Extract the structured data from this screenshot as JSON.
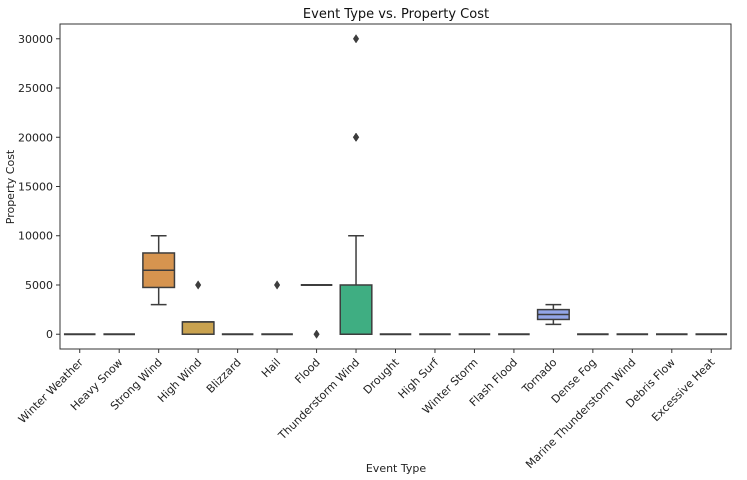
{
  "chart_data": {
    "type": "box",
    "title": "Event Type vs. Property Cost",
    "xlabel": "Event Type",
    "ylabel": "Property Cost",
    "ylim": [
      -1500,
      31500
    ],
    "yticks": [
      0,
      5000,
      10000,
      15000,
      20000,
      25000,
      30000
    ],
    "grid": false,
    "categories": [
      "Winter Weather",
      "Heavy Snow",
      "Strong Wind",
      "High Wind",
      "Blizzard",
      "Hail",
      "Flood",
      "Thunderstorm Wind",
      "Drought",
      "High Surf",
      "Winter Storm",
      "Flash Flood",
      "Tornado",
      "Dense Fog",
      "Marine Thunderstorm Wind",
      "Debris Flow",
      "Excessive Heat"
    ],
    "boxes": [
      {
        "category": "Winter Weather",
        "whisker_low": 0,
        "q1": 0,
        "median": 0,
        "q3": 0,
        "whisker_high": 0,
        "outliers": [],
        "color": "#3274a1"
      },
      {
        "category": "Heavy Snow",
        "whisker_low": 0,
        "q1": 0,
        "median": 0,
        "q3": 0,
        "whisker_high": 0,
        "outliers": [],
        "color": "#e1812c"
      },
      {
        "category": "Strong Wind",
        "whisker_low": 3000,
        "q1": 4750,
        "median": 6500,
        "q3": 8250,
        "whisker_high": 10000,
        "outliers": [],
        "color": "#d6944f"
      },
      {
        "category": "High Wind",
        "whisker_low": 0,
        "q1": 0,
        "median": 1250,
        "q3": 1250,
        "whisker_high": 1250,
        "outliers": [
          5000
        ],
        "color": "#c9a24f"
      },
      {
        "category": "Blizzard",
        "whisker_low": 0,
        "q1": 0,
        "median": 0,
        "q3": 0,
        "whisker_high": 0,
        "outliers": [],
        "color": "#b8a451"
      },
      {
        "category": "Hail",
        "whisker_low": 0,
        "q1": 0,
        "median": 0,
        "q3": 0,
        "whisker_high": 0,
        "outliers": [
          5000
        ],
        "color": "#a3a85a"
      },
      {
        "category": "Flood",
        "whisker_low": 5000,
        "q1": 5000,
        "median": 5000,
        "q3": 5000,
        "whisker_high": 5000,
        "outliers": [
          0
        ],
        "color": "#8fae62"
      },
      {
        "category": "Thunderstorm Wind",
        "whisker_low": 0,
        "q1": 0,
        "median": 0,
        "q3": 5000,
        "whisker_high": 10000,
        "outliers": [
          20000,
          20000,
          30000
        ],
        "color": "#3fae82"
      },
      {
        "category": "Drought",
        "whisker_low": 0,
        "q1": 0,
        "median": 0,
        "q3": 0,
        "whisker_high": 0,
        "outliers": [],
        "color": "#47ab96"
      },
      {
        "category": "High Surf",
        "whisker_low": 0,
        "q1": 0,
        "median": 0,
        "q3": 0,
        "whisker_high": 0,
        "outliers": [],
        "color": "#4aa7a8"
      },
      {
        "category": "Winter Storm",
        "whisker_low": 0,
        "q1": 0,
        "median": 0,
        "q3": 0,
        "whisker_high": 0,
        "outliers": [],
        "color": "#4fa2bb"
      },
      {
        "category": "Flash Flood",
        "whisker_low": 0,
        "q1": 0,
        "median": 0,
        "q3": 0,
        "whisker_high": 0,
        "outliers": [],
        "color": "#6b9ed6"
      },
      {
        "category": "Tornado",
        "whisker_low": 1000,
        "q1": 1500,
        "median": 2000,
        "q3": 2500,
        "whisker_high": 3000,
        "outliers": [],
        "color": "#93a6e8"
      },
      {
        "category": "Dense Fog",
        "whisker_low": 0,
        "q1": 0,
        "median": 0,
        "q3": 0,
        "whisker_high": 0,
        "outliers": [],
        "color": "#b39ae6"
      },
      {
        "category": "Marine Thunderstorm Wind",
        "whisker_low": 0,
        "q1": 0,
        "median": 0,
        "q3": 0,
        "whisker_high": 0,
        "outliers": [],
        "color": "#cf8fd9"
      },
      {
        "category": "Debris Flow",
        "whisker_low": 0,
        "q1": 0,
        "median": 0,
        "q3": 0,
        "whisker_high": 0,
        "outliers": [],
        "color": "#e58ac4"
      },
      {
        "category": "Excessive Heat",
        "whisker_low": 0,
        "q1": 0,
        "median": 0,
        "q3": 0,
        "whisker_high": 0,
        "outliers": [],
        "color": "#ee8aa9"
      }
    ]
  }
}
